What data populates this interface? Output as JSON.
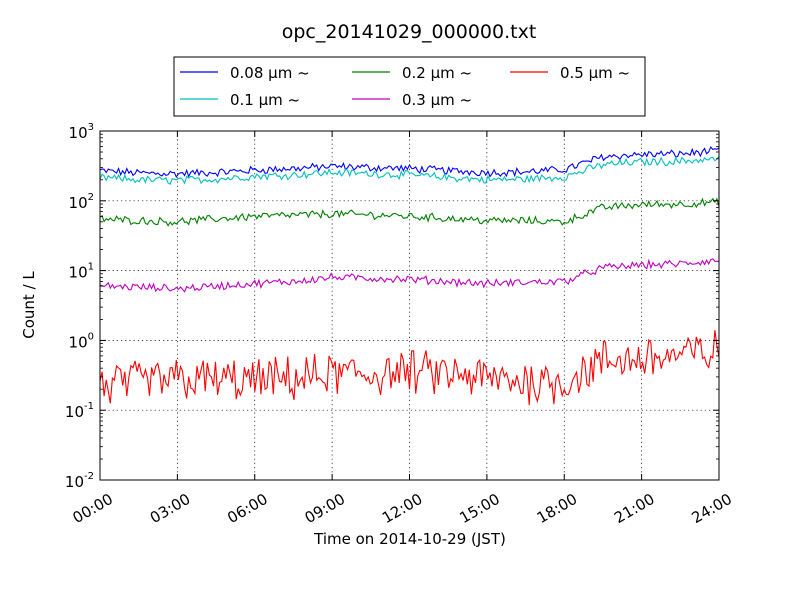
{
  "chart_data": {
    "type": "line",
    "title": "opc_20141029_000000.txt",
    "xlabel": "Time on 2014-10-29 (JST)",
    "ylabel": "Count / L",
    "y_scale": "log",
    "ylim": [
      0.01,
      1000
    ],
    "xlim": [
      "00:00",
      "24:00"
    ],
    "x_ticks": [
      "00:00",
      "03:00",
      "06:00",
      "09:00",
      "12:00",
      "15:00",
      "18:00",
      "21:00",
      "24:00"
    ],
    "y_ticks": [
      {
        "base": "10",
        "exp": "-2"
      },
      {
        "base": "10",
        "exp": "-1"
      },
      {
        "base": "10",
        "exp": "0"
      },
      {
        "base": "10",
        "exp": "1"
      },
      {
        "base": "10",
        "exp": "2"
      },
      {
        "base": "10",
        "exp": "3"
      }
    ],
    "grid": true,
    "legend_position": "top, above plot",
    "x_hours": [
      0,
      1.5,
      3,
      4.5,
      6,
      7.5,
      9,
      10.5,
      12,
      13.5,
      15,
      16.5,
      18,
      19.5,
      21,
      22.5,
      24
    ],
    "series": [
      {
        "name": "0.08 μm ~",
        "color": "#0000ff",
        "values": [
          270,
          250,
          245,
          255,
          275,
          290,
          310,
          300,
          290,
          270,
          255,
          260,
          280,
          430,
          460,
          470,
          520
        ]
      },
      {
        "name": "0.1 μm ~",
        "color": "#00bfbf",
        "values": [
          215,
          200,
          195,
          205,
          225,
          235,
          255,
          245,
          235,
          215,
          200,
          205,
          220,
          330,
          360,
          370,
          400
        ]
      },
      {
        "name": "0.2 μm ~",
        "color": "#008000",
        "values": [
          55,
          52,
          50,
          55,
          60,
          62,
          65,
          63,
          60,
          56,
          52,
          52,
          50,
          80,
          88,
          90,
          95
        ]
      },
      {
        "name": "0.3 μm ~",
        "color": "#bf00bf",
        "values": [
          6.0,
          5.8,
          5.5,
          6.0,
          6.5,
          7.0,
          8.0,
          7.8,
          7.5,
          7.0,
          6.5,
          6.8,
          7.0,
          11,
          12,
          12.5,
          14
        ]
      },
      {
        "name": "0.5 μm ~",
        "color": "#ff0000",
        "values": [
          0.22,
          0.25,
          0.28,
          0.27,
          0.26,
          0.28,
          0.32,
          0.33,
          0.35,
          0.32,
          0.28,
          0.26,
          0.25,
          0.5,
          0.55,
          0.6,
          0.7
        ]
      }
    ]
  }
}
